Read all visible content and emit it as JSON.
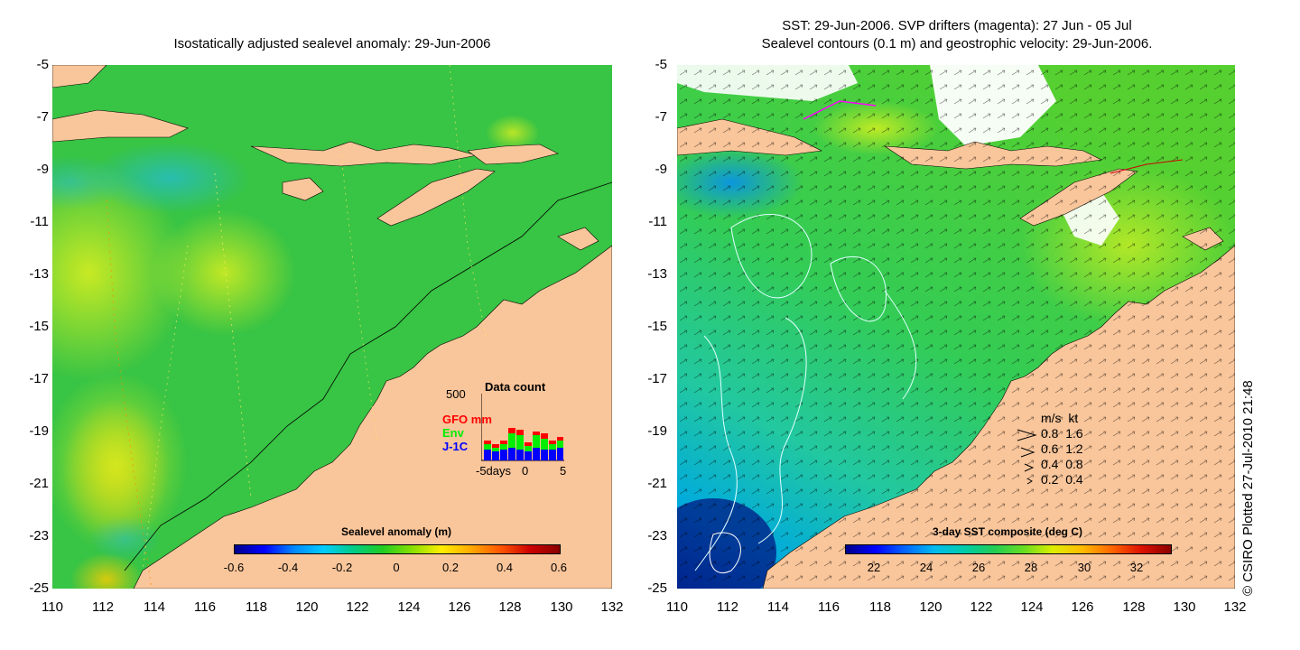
{
  "left_panel": {
    "title": "Isostatically adjusted sealevel anomaly: 29-Jun-2006",
    "y_ticks": [
      "-5",
      "-7",
      "-9",
      "-11",
      "-13",
      "-15",
      "-17",
      "-19",
      "-21",
      "-23",
      "-25"
    ],
    "x_ticks": [
      "110",
      "112",
      "114",
      "116",
      "118",
      "120",
      "122",
      "124",
      "126",
      "128",
      "130",
      "132"
    ],
    "colorbar": {
      "title": "Sealevel anomaly (m)",
      "ticks": [
        "-0.6",
        "-0.4",
        "-0.2",
        "0",
        "0.2",
        "0.4",
        "0.6"
      ]
    },
    "data_count": {
      "title": "Data count",
      "ymax_label": "500",
      "x_ticks": [
        "-5days",
        "0",
        "5"
      ],
      "series": [
        {
          "name": "GFO",
          "unit": "mm",
          "color": "#ff0000"
        },
        {
          "name": "Env",
          "color": "#00ee00"
        },
        {
          "name": "J-1C",
          "color": "#0000ff"
        }
      ]
    }
  },
  "right_panel": {
    "title_line1": "SST: 29-Jun-2006. SVP drifters (magenta): 27 Jun - 05 Jul",
    "title_line2": "Sealevel contours (0.1 m) and geostrophic velocity: 29-Jun-2006.",
    "y_ticks": [
      "-5",
      "-7",
      "-9",
      "-11",
      "-13",
      "-15",
      "-17",
      "-19",
      "-21",
      "-23",
      "-25"
    ],
    "x_ticks": [
      "110",
      "112",
      "114",
      "116",
      "118",
      "120",
      "122",
      "124",
      "126",
      "128",
      "130",
      "132"
    ],
    "colorbar": {
      "title": "3-day SST composite (deg C)",
      "ticks": [
        "22",
        "24",
        "26",
        "28",
        "30",
        "32"
      ]
    },
    "velocity_legend": {
      "header": "m/s  kt",
      "rows": [
        "0.8  1.6",
        "0.6  1.2",
        "0.4  0.8",
        "0.2  0.4"
      ]
    }
  },
  "copyright": "© CSIRO Plotted 27-Jul-2010 21:48",
  "colors": {
    "land": "#f9c59a",
    "ocean_green": "#33cc33",
    "cloud": "#ffffff"
  }
}
